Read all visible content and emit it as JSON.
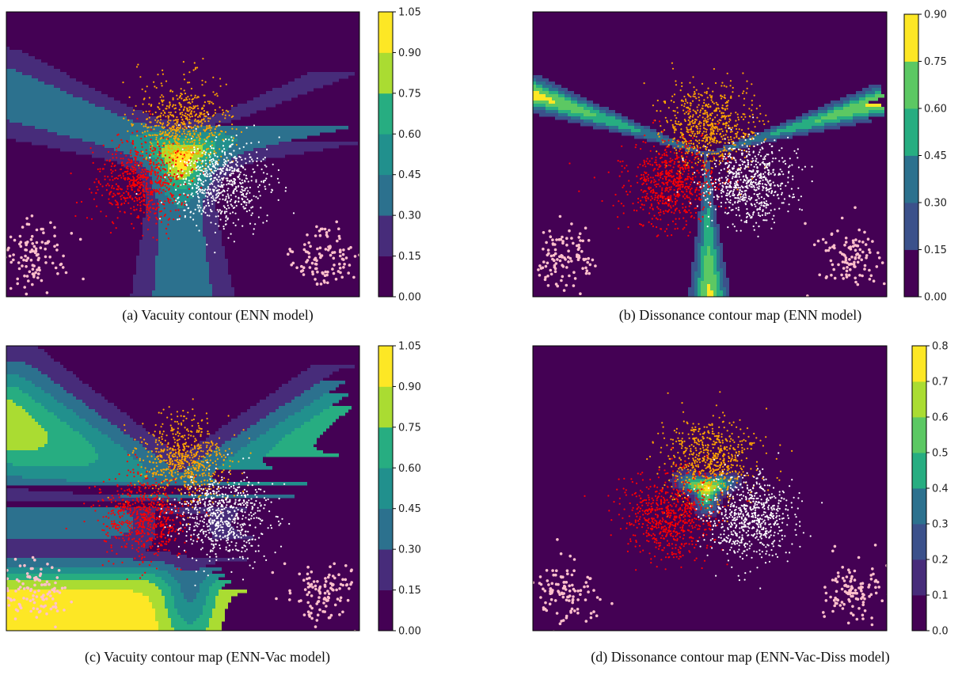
{
  "colors": {
    "viridis": [
      "#440154",
      "#472c7a",
      "#3b518b",
      "#2c718e",
      "#21908d",
      "#27ad81",
      "#5cc863",
      "#aadc32",
      "#fde725"
    ],
    "orange_class": "#ffa500",
    "red_class": "#ff0000",
    "white_class": "#ffffff",
    "pink_class": "#ffc0cb"
  },
  "chart_data": [
    {
      "type": "contour",
      "caption": "(a) Vacuity contour (ENN model)",
      "colorbar": {
        "ticks": [
          "0.00",
          "0.15",
          "0.30",
          "0.45",
          "0.60",
          "0.75",
          "0.90",
          "1.05"
        ],
        "levels": [
          0,
          0.15,
          0.3,
          0.45,
          0.6,
          0.75,
          0.9,
          1.05
        ]
      },
      "field": "vacuity_enn",
      "classes": [
        "orange",
        "red",
        "white",
        "pink"
      ]
    },
    {
      "type": "contour",
      "caption": "(b) Dissonance contour map (ENN model)",
      "colorbar": {
        "ticks": [
          "0.00",
          "0.15",
          "0.30",
          "0.45",
          "0.60",
          "0.75",
          "0.90"
        ],
        "levels": [
          0,
          0.15,
          0.3,
          0.45,
          0.6,
          0.75,
          0.9
        ]
      },
      "field": "dissonance_enn",
      "classes": [
        "orange",
        "red",
        "white",
        "pink"
      ]
    },
    {
      "type": "contour",
      "caption": "(c) Vacuity contour map (ENN-Vac model)",
      "colorbar": {
        "ticks": [
          "0.00",
          "0.15",
          "0.30",
          "0.45",
          "0.60",
          "0.75",
          "0.90",
          "1.05"
        ],
        "levels": [
          0,
          0.15,
          0.3,
          0.45,
          0.6,
          0.75,
          0.9,
          1.05
        ]
      },
      "field": "vacuity_enn_vac",
      "classes": [
        "orange",
        "red",
        "white",
        "pink"
      ]
    },
    {
      "type": "contour",
      "caption": "(d) Dissonance contour map (ENN-Vac-Diss model)",
      "colorbar": {
        "ticks": [
          "0.0",
          "0.1",
          "0.2",
          "0.3",
          "0.4",
          "0.5",
          "0.6",
          "0.7",
          "0.8"
        ],
        "levels": [
          0,
          0.1,
          0.2,
          0.3,
          0.4,
          0.5,
          0.6,
          0.7,
          0.8
        ]
      },
      "field": "dissonance_enn_vac_diss",
      "classes": [
        "orange",
        "red",
        "white",
        "pink"
      ]
    }
  ]
}
